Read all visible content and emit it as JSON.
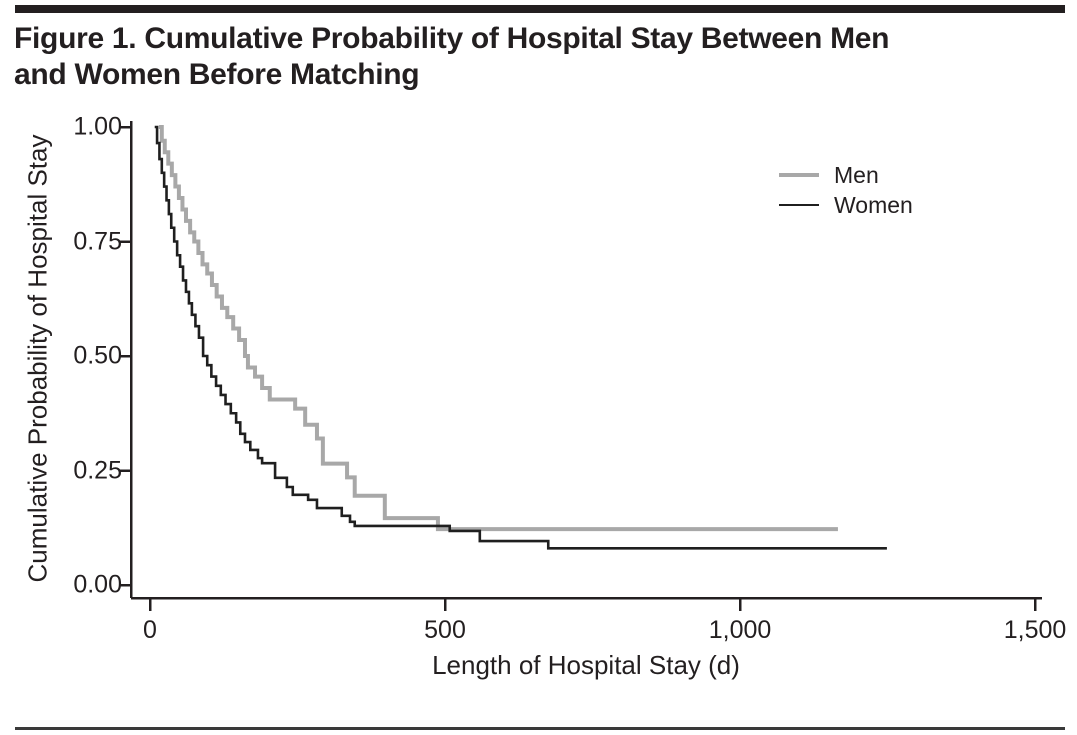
{
  "figure": {
    "title": "Figure 1. Cumulative Probability of Hospital Stay Between Men and Women Before Matching",
    "title_lines": [
      "Figure 1. Cumulative Probability of Hospital Stay Between Men",
      "and Women Before Matching"
    ]
  },
  "chart_data": {
    "type": "line",
    "subtype": "kaplan-meier-step-survival",
    "title": "Figure 1. Cumulative Probability of Hospital Stay Between Men and Women Before Matching",
    "xlabel": "Length of Hospital Stay (d)",
    "ylabel": "Cumulative Probability of Hospital Stay",
    "xlim": [
      0,
      1500
    ],
    "ylim": [
      0.0,
      1.0
    ],
    "x_ticks": [
      0,
      500,
      1000,
      1500
    ],
    "x_tick_labels": [
      "0",
      "500",
      "1,000",
      "1,500"
    ],
    "y_ticks": [
      0.0,
      0.25,
      0.5,
      0.75,
      1.0
    ],
    "y_tick_labels": [
      "0.00",
      "0.25",
      "0.50",
      "0.75",
      "1.00"
    ],
    "grid": false,
    "legend_position": "upper right",
    "series": [
      {
        "name": "Men",
        "color": "#a8a8a8",
        "line_width": 4,
        "days": [
          15,
          20,
          25,
          31,
          37,
          43,
          49,
          55,
          61,
          68,
          75,
          82,
          89,
          97,
          105,
          113,
          122,
          131,
          141,
          151,
          161,
          166,
          178,
          190,
          203,
          246,
          263,
          283,
          293,
          334,
          347,
          398,
          488
        ],
        "probs": [
          1.0,
          0.97,
          0.945,
          0.92,
          0.895,
          0.87,
          0.845,
          0.82,
          0.795,
          0.77,
          0.75,
          0.725,
          0.7,
          0.68,
          0.655,
          0.63,
          0.605,
          0.585,
          0.56,
          0.535,
          0.5,
          0.475,
          0.455,
          0.43,
          0.405,
          0.385,
          0.35,
          0.32,
          0.265,
          0.235,
          0.195,
          0.146,
          0.122
        ],
        "end_day": 1166
      },
      {
        "name": "Women",
        "color": "#1f1f1f",
        "line_width": 2.6,
        "days": [
          8,
          12,
          16,
          20,
          24,
          28,
          32,
          36,
          41,
          46,
          51,
          56,
          61,
          66,
          71,
          77,
          83,
          90,
          97,
          104,
          112,
          120,
          128,
          137,
          146,
          153,
          161,
          170,
          183,
          190,
          212,
          232,
          242,
          268,
          283,
          325,
          339,
          347,
          508,
          559,
          675
        ],
        "probs": [
          1.0,
          0.965,
          0.93,
          0.9,
          0.87,
          0.84,
          0.81,
          0.78,
          0.75,
          0.72,
          0.695,
          0.665,
          0.64,
          0.615,
          0.59,
          0.565,
          0.54,
          0.5,
          0.48,
          0.455,
          0.435,
          0.415,
          0.395,
          0.375,
          0.355,
          0.33,
          0.312,
          0.295,
          0.277,
          0.266,
          0.234,
          0.214,
          0.197,
          0.186,
          0.168,
          0.151,
          0.138,
          0.129,
          0.118,
          0.096,
          0.08
        ],
        "end_day": 1249
      }
    ]
  },
  "legend": {
    "items": [
      {
        "label": "Men",
        "color": "#a8a8a8"
      },
      {
        "label": "Women",
        "color": "#1f1f1f"
      }
    ]
  },
  "colors": {
    "text": "#231f20",
    "axis": "#231f20",
    "rule": "#231f20",
    "men_line": "#a8a8a8",
    "women_line": "#1f1f1f"
  }
}
